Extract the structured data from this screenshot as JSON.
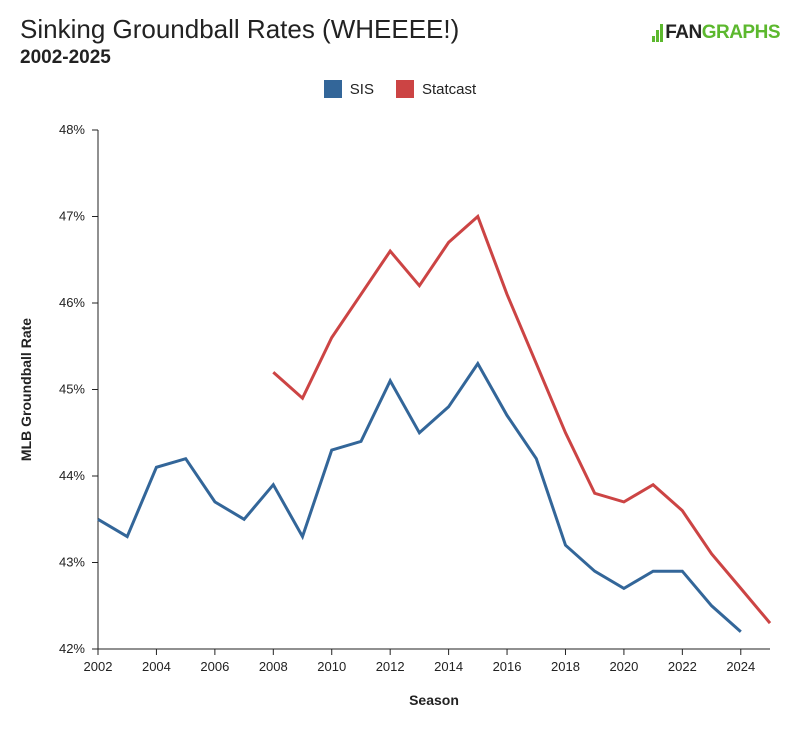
{
  "header": {
    "title": "Sinking Groundball Rates (WHEEEE!)",
    "subtitle": "2002-2025",
    "logo_fan": "FAN",
    "logo_graphs": "GRAPHS"
  },
  "colors": {
    "sis": "#336699",
    "statcast": "#cc4444",
    "logo_green": "#5cb82e"
  },
  "chart_data": {
    "type": "line",
    "title": "Sinking Groundball Rates (WHEEEE!)",
    "subtitle": "2002-2025",
    "xlabel": "Season",
    "ylabel": "MLB Groundball Rate",
    "xlim": [
      2002,
      2025
    ],
    "ylim": [
      42,
      48
    ],
    "x_ticks": [
      2002,
      2004,
      2006,
      2008,
      2010,
      2012,
      2014,
      2016,
      2018,
      2020,
      2022,
      2024
    ],
    "y_ticks": [
      42,
      43,
      44,
      45,
      46,
      47,
      48
    ],
    "y_tick_labels": [
      "42%",
      "43%",
      "44%",
      "45%",
      "46%",
      "47%",
      "48%"
    ],
    "grid": false,
    "legend_position": "top-center",
    "series": [
      {
        "name": "SIS",
        "color": "#336699",
        "x": [
          2002,
          2003,
          2004,
          2005,
          2006,
          2007,
          2008,
          2009,
          2010,
          2011,
          2012,
          2013,
          2014,
          2015,
          2016,
          2017,
          2018,
          2019,
          2020,
          2021,
          2022,
          2023,
          2024
        ],
        "values": [
          43.5,
          43.3,
          44.1,
          44.2,
          43.7,
          43.5,
          43.9,
          43.3,
          44.3,
          44.4,
          45.1,
          44.5,
          44.8,
          45.3,
          44.7,
          44.2,
          43.2,
          42.9,
          42.7,
          42.9,
          42.9,
          42.5,
          42.2
        ]
      },
      {
        "name": "Statcast",
        "color": "#cc4444",
        "x": [
          2008,
          2009,
          2010,
          2011,
          2012,
          2013,
          2014,
          2015,
          2016,
          2017,
          2018,
          2019,
          2020,
          2021,
          2022,
          2023,
          2024,
          2025
        ],
        "values": [
          45.2,
          44.9,
          45.6,
          46.1,
          46.6,
          46.2,
          46.7,
          47.0,
          46.1,
          45.3,
          44.5,
          43.8,
          43.7,
          43.9,
          43.6,
          43.1,
          42.7,
          42.3
        ]
      }
    ]
  }
}
